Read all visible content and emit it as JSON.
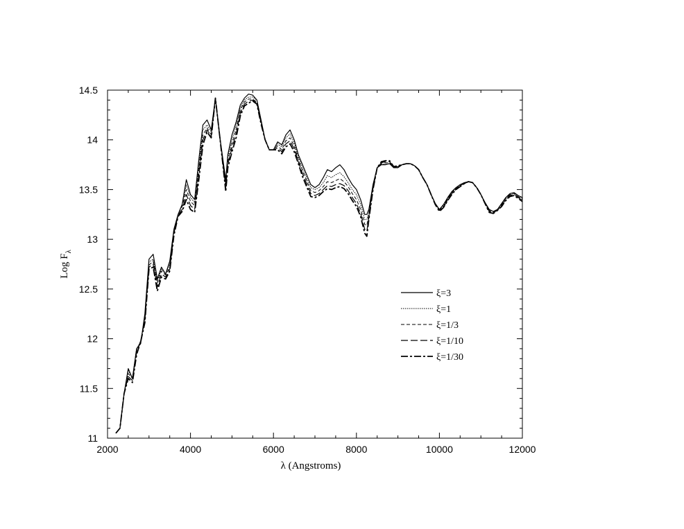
{
  "chart_data": {
    "type": "line",
    "title": "",
    "xlabel": "λ (Angstroms)",
    "ylabel_main": "Log F",
    "ylabel_sub": "λ",
    "xlim": [
      2000,
      12000
    ],
    "ylim": [
      11,
      14.5
    ],
    "xticks": [
      2000,
      4000,
      6000,
      8000,
      10000,
      12000
    ],
    "yticks": [
      11,
      11.5,
      12,
      12.5,
      13,
      13.5,
      14,
      14.5
    ],
    "grid": false,
    "legend_position": "lower-right",
    "x": [
      2200,
      2300,
      2400,
      2500,
      2600,
      2700,
      2800,
      2900,
      3000,
      3100,
      3200,
      3300,
      3400,
      3500,
      3600,
      3700,
      3800,
      3900,
      4000,
      4100,
      4200,
      4300,
      4400,
      4500,
      4600,
      4700,
      4800,
      4850,
      4900,
      5000,
      5100,
      5200,
      5300,
      5400,
      5500,
      5600,
      5700,
      5800,
      5900,
      6000,
      6100,
      6200,
      6300,
      6400,
      6500,
      6600,
      6700,
      6800,
      6900,
      7000,
      7100,
      7200,
      7300,
      7400,
      7500,
      7600,
      7700,
      7800,
      7900,
      8000,
      8100,
      8200,
      8250,
      8300,
      8400,
      8500,
      8600,
      8700,
      8800,
      8900,
      9000,
      9100,
      9200,
      9300,
      9400,
      9500,
      9600,
      9700,
      9800,
      9900,
      10000,
      10100,
      10200,
      10300,
      10400,
      10500,
      10600,
      10700,
      10800,
      10900,
      11000,
      11100,
      11200,
      11300,
      11400,
      11500,
      11600,
      11700,
      11800,
      11900,
      12000
    ],
    "series": [
      {
        "name": "ξ=3",
        "style": "solid",
        "values": [
          11.05,
          11.1,
          11.45,
          11.7,
          11.6,
          11.9,
          11.95,
          12.25,
          12.8,
          12.85,
          12.6,
          12.72,
          12.65,
          12.78,
          13.1,
          13.25,
          13.35,
          13.6,
          13.45,
          13.4,
          13.8,
          14.15,
          14.2,
          14.1,
          14.42,
          14.05,
          13.75,
          13.6,
          13.85,
          14.05,
          14.18,
          14.35,
          14.42,
          14.46,
          14.45,
          14.4,
          14.2,
          14.0,
          13.9,
          13.9,
          13.98,
          13.95,
          14.05,
          14.1,
          14.0,
          13.85,
          13.75,
          13.65,
          13.55,
          13.52,
          13.55,
          13.62,
          13.7,
          13.68,
          13.72,
          13.75,
          13.7,
          13.62,
          13.55,
          13.5,
          13.4,
          13.25,
          13.25,
          13.3,
          13.55,
          13.72,
          13.75,
          13.75,
          13.76,
          13.72,
          13.72,
          13.75,
          13.76,
          13.76,
          13.74,
          13.7,
          13.62,
          13.55,
          13.45,
          13.36,
          13.3,
          13.35,
          13.42,
          13.48,
          13.52,
          13.55,
          13.57,
          13.58,
          13.57,
          13.52,
          13.45,
          13.37,
          13.3,
          13.28,
          13.3,
          13.36,
          13.42,
          13.46,
          13.47,
          13.44,
          13.42
        ]
      },
      {
        "name": "ξ=1",
        "style": "dotted",
        "values": [
          11.05,
          11.1,
          11.45,
          11.68,
          11.6,
          11.9,
          11.97,
          12.22,
          12.77,
          12.8,
          12.58,
          12.7,
          12.65,
          12.75,
          13.1,
          13.25,
          13.35,
          13.55,
          13.42,
          13.37,
          13.75,
          14.1,
          14.15,
          14.08,
          14.42,
          14.05,
          13.73,
          13.57,
          13.82,
          14.0,
          14.15,
          14.32,
          14.4,
          14.43,
          14.43,
          14.4,
          14.2,
          14.0,
          13.9,
          13.9,
          13.96,
          13.93,
          14.02,
          14.06,
          13.97,
          13.83,
          13.72,
          13.62,
          13.52,
          13.5,
          13.52,
          13.57,
          13.64,
          13.62,
          13.65,
          13.67,
          13.63,
          13.57,
          13.5,
          13.45,
          13.35,
          13.2,
          13.2,
          13.27,
          13.53,
          13.72,
          13.75,
          13.76,
          13.76,
          13.72,
          13.72,
          13.75,
          13.76,
          13.76,
          13.74,
          13.7,
          13.62,
          13.55,
          13.45,
          13.36,
          13.3,
          13.34,
          13.41,
          13.47,
          13.51,
          13.54,
          13.56,
          13.58,
          13.57,
          13.52,
          13.45,
          13.37,
          13.3,
          13.28,
          13.3,
          13.36,
          13.42,
          13.45,
          13.46,
          13.43,
          13.41
        ]
      },
      {
        "name": "ξ=1/3",
        "style": "dashed",
        "values": [
          11.05,
          11.1,
          11.45,
          11.65,
          11.6,
          11.88,
          11.98,
          12.2,
          12.74,
          12.78,
          12.56,
          12.68,
          12.64,
          12.72,
          13.08,
          13.25,
          13.33,
          13.5,
          13.38,
          13.34,
          13.7,
          14.05,
          14.12,
          14.05,
          14.42,
          14.05,
          13.72,
          13.55,
          13.78,
          13.96,
          14.1,
          14.3,
          14.38,
          14.41,
          14.41,
          14.38,
          14.18,
          14.0,
          13.9,
          13.9,
          13.94,
          13.9,
          13.99,
          14.02,
          13.94,
          13.8,
          13.69,
          13.59,
          13.49,
          13.47,
          13.49,
          13.53,
          13.58,
          13.57,
          13.59,
          13.61,
          13.58,
          13.53,
          13.46,
          13.4,
          13.3,
          13.15,
          13.14,
          13.25,
          13.52,
          13.72,
          13.76,
          13.77,
          13.77,
          13.72,
          13.73,
          13.75,
          13.76,
          13.76,
          13.74,
          13.7,
          13.62,
          13.55,
          13.45,
          13.36,
          13.3,
          13.33,
          13.41,
          13.47,
          13.51,
          13.54,
          13.56,
          13.58,
          13.57,
          13.52,
          13.45,
          13.37,
          13.29,
          13.27,
          13.3,
          13.35,
          13.41,
          13.45,
          13.46,
          13.43,
          13.4
        ]
      },
      {
        "name": "ξ=1/10",
        "style": "long-dash",
        "values": [
          11.05,
          11.1,
          11.45,
          11.62,
          11.58,
          11.86,
          11.98,
          12.18,
          12.72,
          12.75,
          12.52,
          12.65,
          12.62,
          12.7,
          13.06,
          13.24,
          13.3,
          13.45,
          13.34,
          13.3,
          13.65,
          14.0,
          14.1,
          14.03,
          14.42,
          14.05,
          13.7,
          13.52,
          13.75,
          13.92,
          14.06,
          14.27,
          14.36,
          14.39,
          14.4,
          14.37,
          14.17,
          14.0,
          13.9,
          13.9,
          13.92,
          13.88,
          13.96,
          13.99,
          13.91,
          13.78,
          13.66,
          13.56,
          13.46,
          13.44,
          13.46,
          13.5,
          13.54,
          13.53,
          13.55,
          13.56,
          13.54,
          13.49,
          13.42,
          13.36,
          13.26,
          13.1,
          13.08,
          13.22,
          13.51,
          13.72,
          13.77,
          13.78,
          13.78,
          13.73,
          13.73,
          13.75,
          13.76,
          13.76,
          13.74,
          13.7,
          13.62,
          13.55,
          13.45,
          13.36,
          13.29,
          13.32,
          13.4,
          13.46,
          13.5,
          13.53,
          13.56,
          13.58,
          13.57,
          13.52,
          13.45,
          13.36,
          13.28,
          13.27,
          13.29,
          13.34,
          13.4,
          13.44,
          13.45,
          13.42,
          13.39
        ]
      },
      {
        "name": "ξ=1/30",
        "style": "dash-dot",
        "values": [
          11.05,
          11.1,
          11.45,
          11.6,
          11.56,
          11.84,
          11.97,
          12.16,
          12.7,
          12.72,
          12.48,
          12.62,
          12.6,
          12.68,
          13.04,
          13.23,
          13.28,
          13.4,
          13.3,
          13.27,
          13.6,
          13.95,
          14.08,
          14.02,
          14.42,
          14.05,
          13.68,
          13.48,
          13.72,
          13.88,
          14.02,
          14.24,
          14.34,
          14.37,
          14.39,
          14.36,
          14.16,
          14.0,
          13.9,
          13.9,
          13.9,
          13.86,
          13.93,
          13.96,
          13.88,
          13.76,
          13.63,
          13.53,
          13.43,
          13.42,
          13.44,
          13.48,
          13.51,
          13.5,
          13.52,
          13.53,
          13.51,
          13.46,
          13.39,
          13.33,
          13.23,
          13.06,
          13.03,
          13.2,
          13.5,
          13.72,
          13.78,
          13.79,
          13.79,
          13.73,
          13.74,
          13.75,
          13.76,
          13.76,
          13.74,
          13.7,
          13.62,
          13.55,
          13.45,
          13.35,
          13.28,
          13.32,
          13.39,
          13.45,
          13.5,
          13.53,
          13.56,
          13.58,
          13.57,
          13.52,
          13.45,
          13.36,
          13.27,
          13.26,
          13.29,
          13.33,
          13.39,
          13.43,
          13.44,
          13.41,
          13.38
        ]
      }
    ]
  }
}
